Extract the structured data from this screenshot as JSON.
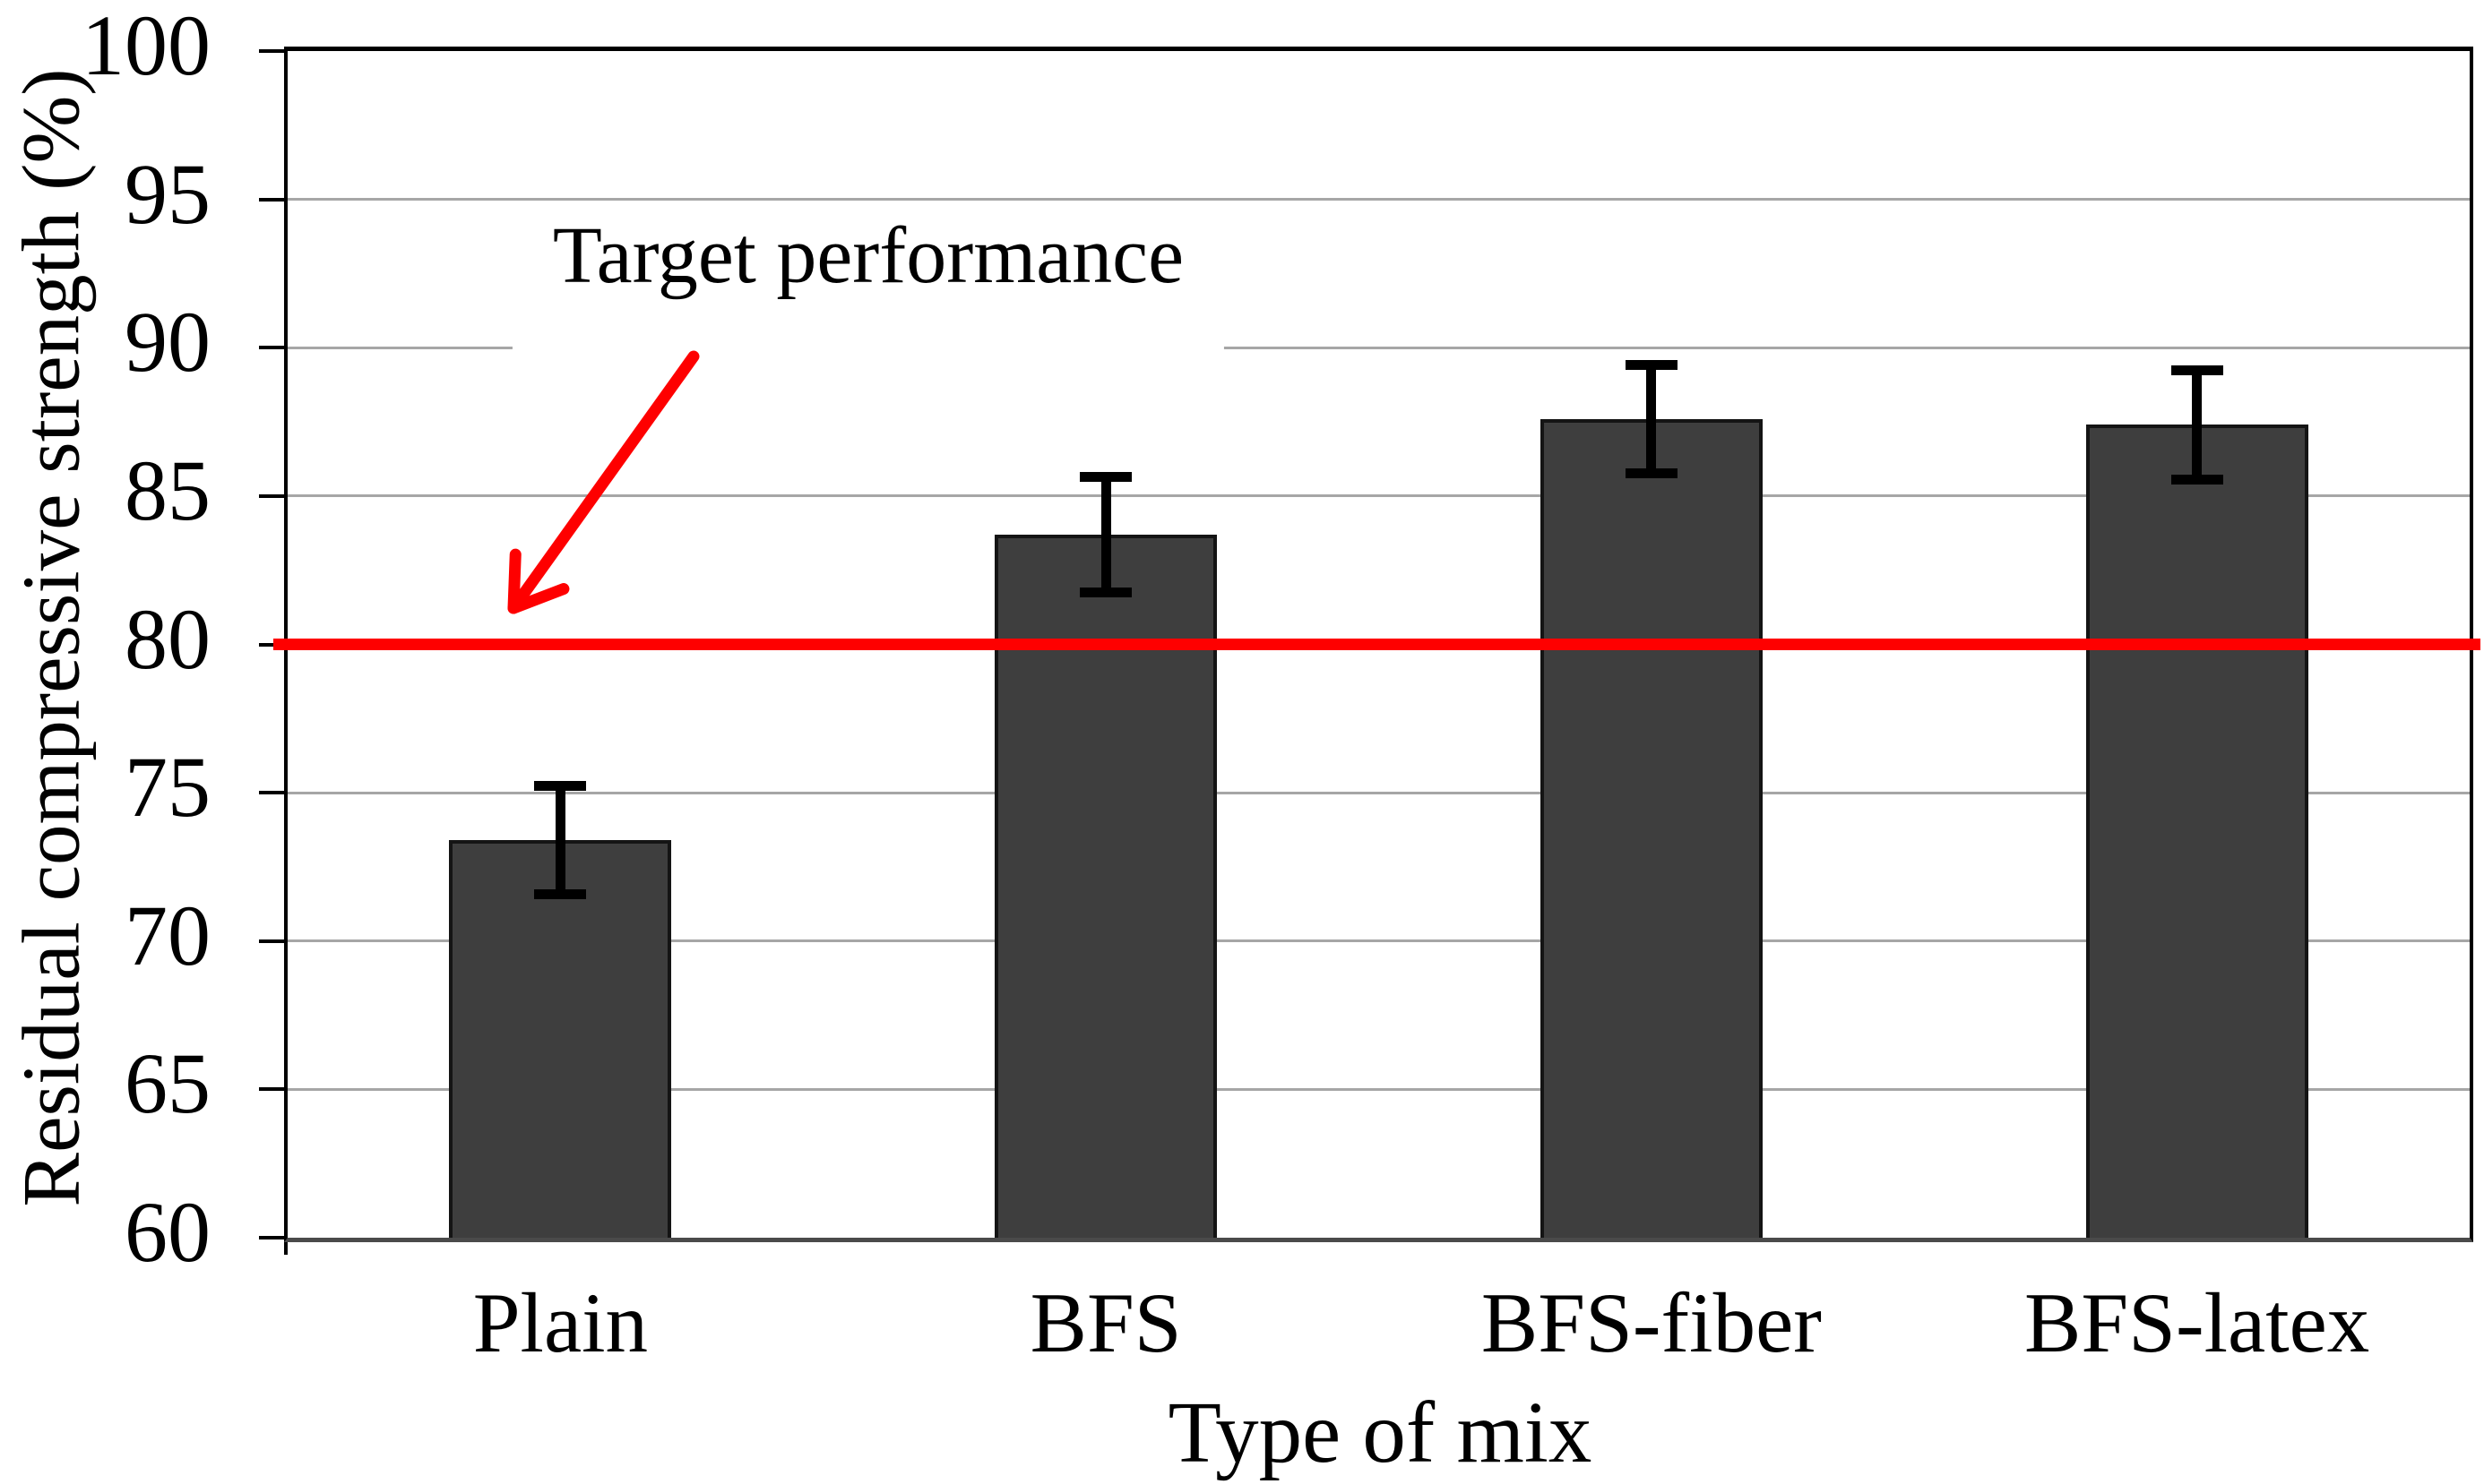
{
  "chart_data": {
    "type": "bar",
    "title": "",
    "xlabel": "Type of mix",
    "ylabel": "Residual compressive strength (%)",
    "categories": [
      "Plain",
      "BFS",
      "BFS-fiber",
      "BFS-latex"
    ],
    "values": [
      73.4,
      83.7,
      87.6,
      87.4
    ],
    "errors": [
      2.0,
      2.1,
      2.0,
      2.0
    ],
    "ylim": [
      60,
      100
    ],
    "yticks": [
      60,
      65,
      70,
      75,
      80,
      85,
      90,
      95,
      100
    ],
    "grid": true,
    "legend_position": "none",
    "bar_color": "#3e3e3e",
    "bar_border_color": "#141414",
    "gridline_color": "#a6a6a6",
    "error_bar_color": "#000000",
    "target_line": {
      "value": 80,
      "label": "Target performance",
      "color": "#fe0000"
    }
  }
}
